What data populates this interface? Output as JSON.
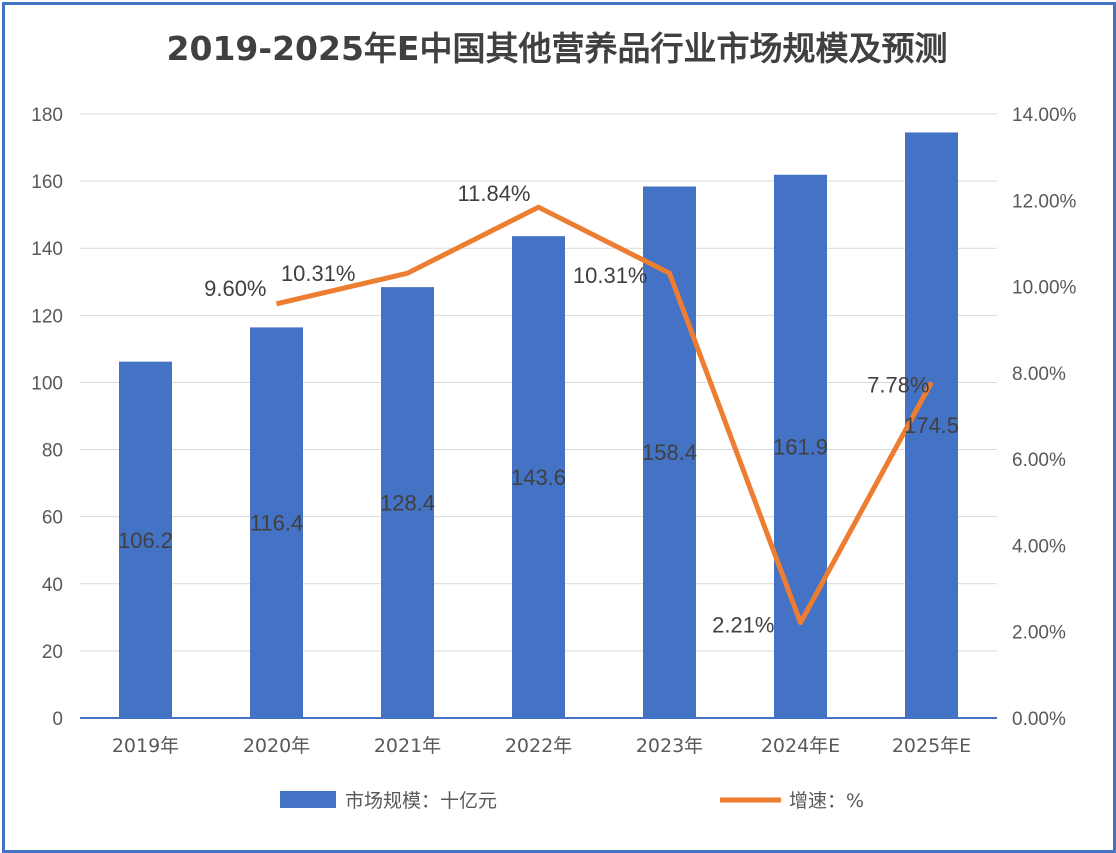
{
  "title": "2019-2025年E中国其他营养品行业市场规模及预测",
  "chart_data": {
    "type": "bar",
    "title": "2019-2025年E中国其他营养品行业市场规模及预测",
    "categories": [
      "2019年",
      "2020年",
      "2021年",
      "2022年",
      "2023年",
      "2024年E",
      "2025年E"
    ],
    "series": [
      {
        "name": "市场规模：十亿元",
        "type": "bar",
        "axis": "left",
        "color": "#4472c4",
        "values": [
          106.2,
          116.4,
          128.4,
          143.6,
          158.4,
          161.9,
          174.5
        ],
        "labels": [
          "106.2",
          "116.4",
          "128.4",
          "143.6",
          "158.4",
          "161.9",
          "174.5"
        ]
      },
      {
        "name": "增速：%",
        "type": "line",
        "axis": "right",
        "color": "#ed7d31",
        "values": [
          null,
          9.6,
          10.31,
          11.84,
          10.31,
          2.21,
          7.78
        ],
        "labels": [
          "",
          "9.60%",
          "10.31%",
          "11.84%",
          "10.31%",
          "2.21%",
          "7.78%"
        ]
      }
    ],
    "y_left": {
      "range": [
        0,
        180
      ],
      "ticks": [
        0,
        20,
        40,
        60,
        80,
        100,
        120,
        140,
        160,
        180
      ],
      "tick_labels": [
        "0",
        "20",
        "40",
        "60",
        "80",
        "100",
        "120",
        "140",
        "160",
        "180"
      ]
    },
    "y_right": {
      "range": [
        0,
        14
      ],
      "ticks": [
        0,
        2,
        4,
        6,
        8,
        10,
        12,
        14
      ],
      "tick_labels": [
        "0.00%",
        "2.00%",
        "4.00%",
        "6.00%",
        "8.00%",
        "10.00%",
        "12.00%",
        "14.00%"
      ]
    },
    "grid": true,
    "legend_position": "bottom"
  }
}
